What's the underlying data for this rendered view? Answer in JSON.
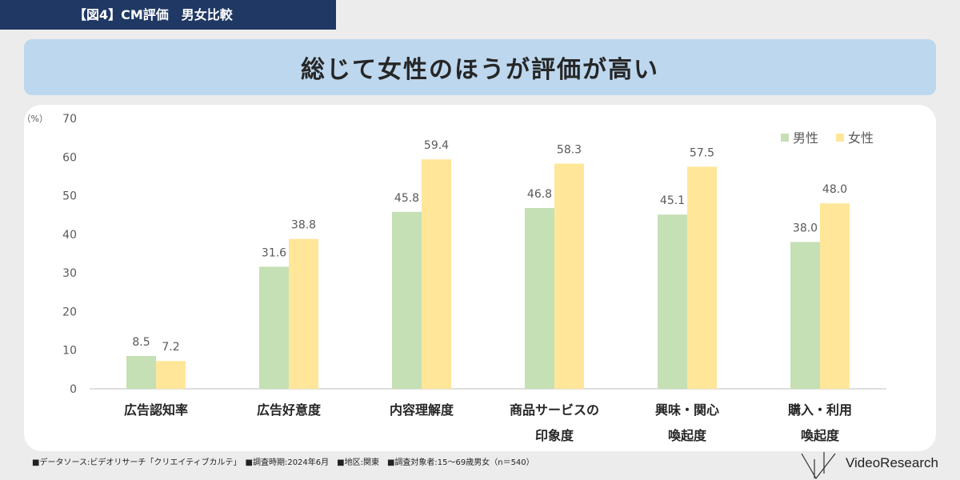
{
  "header": {
    "figure_tag": "【図4】CM評価　男女比較",
    "headline": "総じて女性のほうが評価が高い"
  },
  "footer": {
    "note": "■データソース:ビデオリサーチ「クリエイティブカルテ」　■調査時期:2024年6月　■地区:関東　■調査対象者:15～69歳男女（n＝540）",
    "logo_text": "VideoResearch"
  },
  "colors": {
    "male": "#c5e0b4",
    "female": "#ffe699",
    "axis": "#bfbfbf",
    "text": "#595959"
  },
  "chart_data": {
    "type": "bar",
    "ylabel": "（%）",
    "ylim": [
      0,
      70
    ],
    "yticks": [
      0,
      10,
      20,
      30,
      40,
      50,
      60,
      70
    ],
    "legend_position": "top-right",
    "grid": false,
    "categories": [
      [
        "広告認知率"
      ],
      [
        "広告好意度"
      ],
      [
        "内容理解度"
      ],
      [
        "商品サービスの",
        "印象度"
      ],
      [
        "興味・関心",
        "喚起度"
      ],
      [
        "購入・利用",
        "喚起度"
      ]
    ],
    "series": [
      {
        "name": "男性",
        "values": [
          8.5,
          31.6,
          45.8,
          46.8,
          45.1,
          38.0
        ],
        "labels": [
          "8.5",
          "31.6",
          "45.8",
          "46.8",
          "45.1",
          "38.0"
        ]
      },
      {
        "name": "女性",
        "values": [
          7.2,
          38.8,
          59.4,
          58.3,
          57.5,
          48.0
        ],
        "labels": [
          "7.2",
          "38.8",
          "59.4",
          "58.3",
          "57.5",
          "48.0"
        ]
      }
    ]
  }
}
